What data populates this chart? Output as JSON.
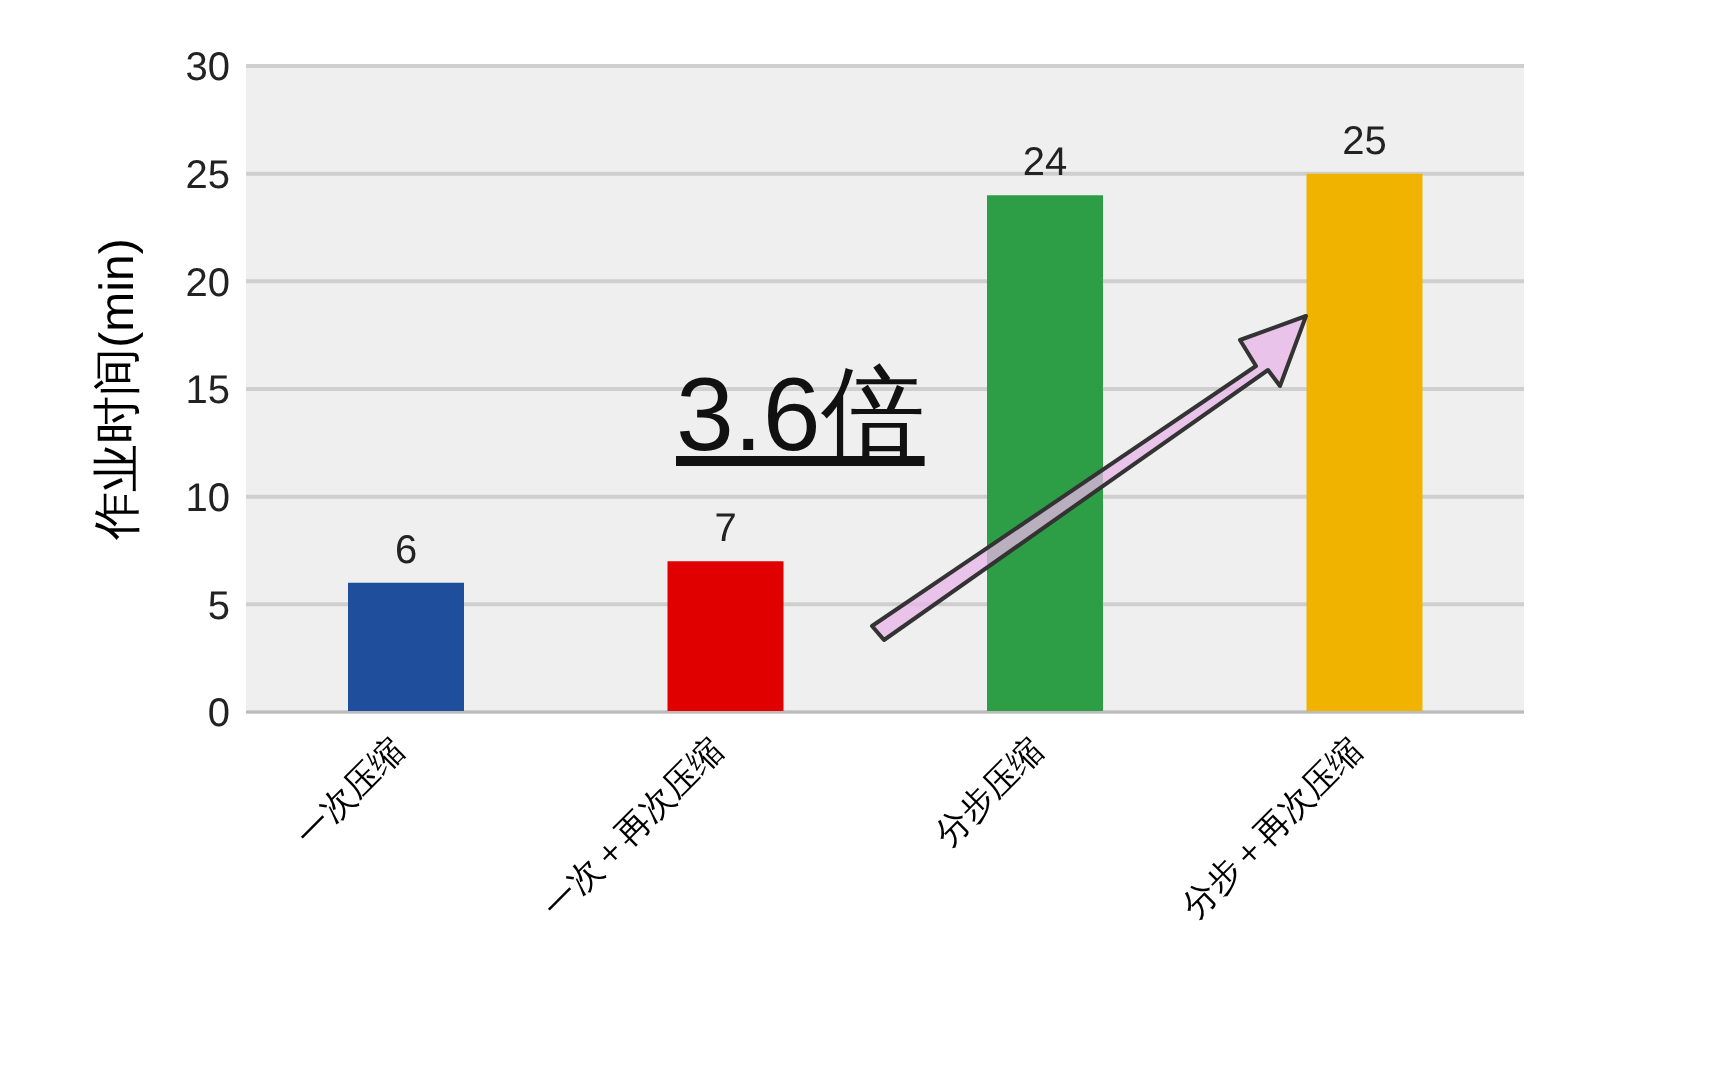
{
  "chart_data": {
    "type": "bar",
    "ylabel": "作业时间(min)",
    "categories": [
      "一次压缩",
      "一次＋再次压缩",
      "分步压缩",
      "分步＋再次压缩"
    ],
    "values": [
      6,
      7,
      24,
      25
    ],
    "colors": [
      "#1f4e9c",
      "#e00000",
      "#2e9e46",
      "#f0b400"
    ],
    "ylim": [
      0,
      30
    ],
    "yticks": [
      0,
      5,
      10,
      15,
      20,
      25,
      30
    ],
    "grid": "y",
    "data_labels": true,
    "annotations": [
      "3.6倍"
    ]
  }
}
